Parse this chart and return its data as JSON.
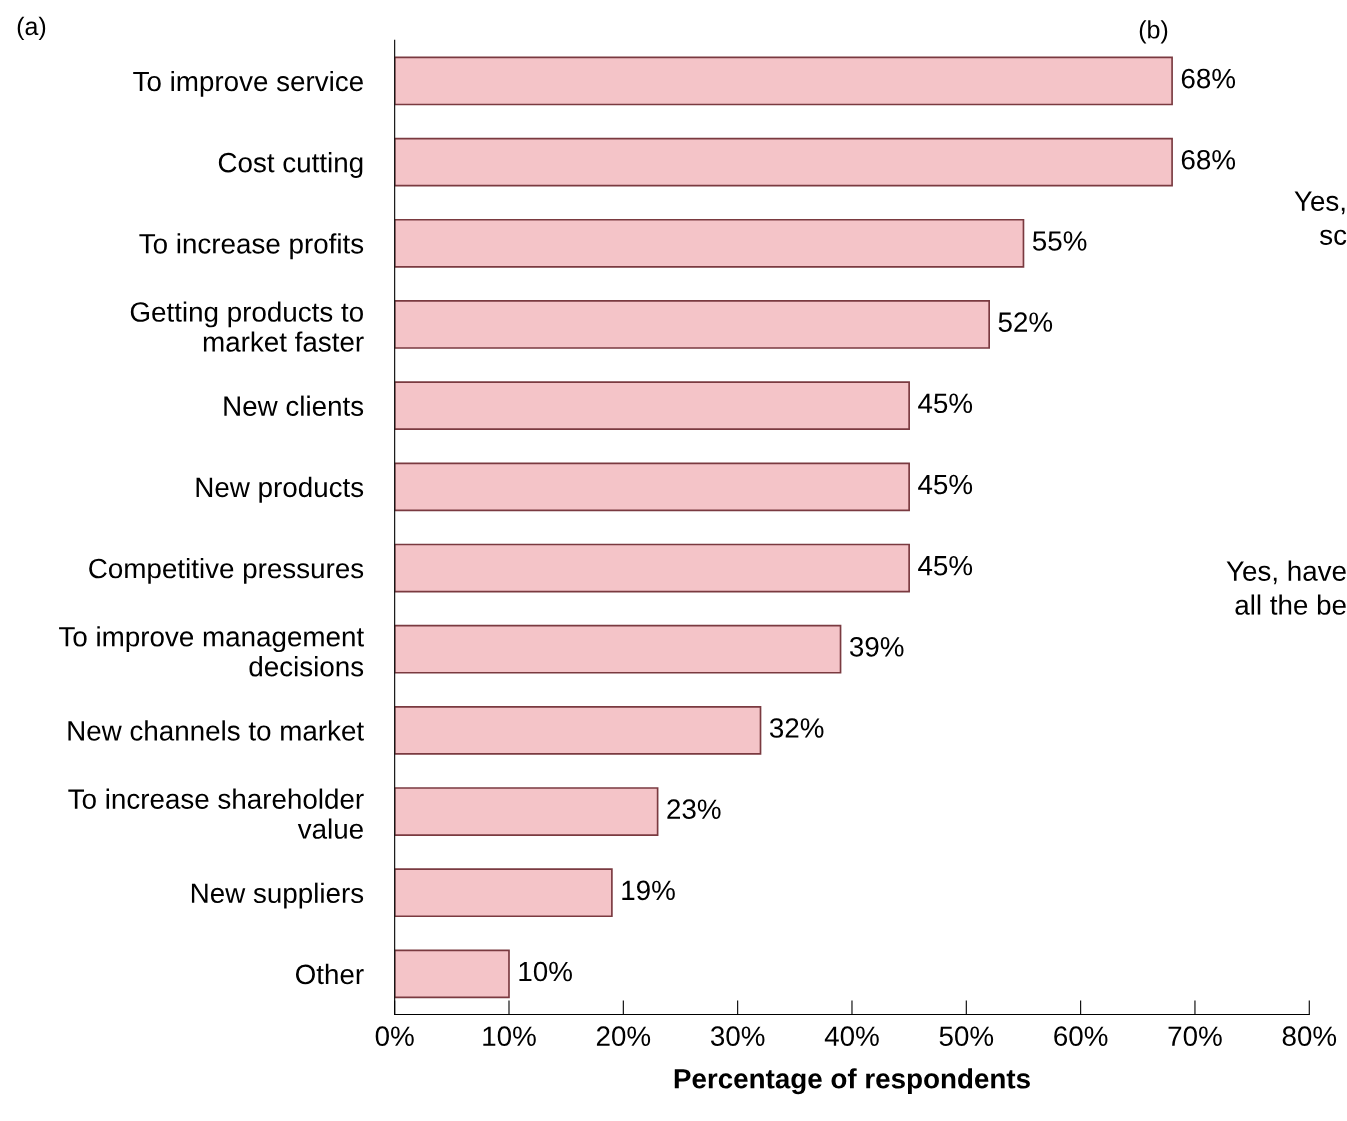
{
  "chart_data": {
    "type": "bar",
    "orientation": "horizontal",
    "xlabel": "Percentage of respondents",
    "categories": [
      "To improve service",
      "Cost cutting",
      "To increase profits",
      "Getting products to\nmarket faster",
      "New clients",
      "New products",
      "Competitive pressures",
      "To improve management\ndecisions",
      "New channels to market",
      "To increase shareholder\nvalue",
      "New suppliers",
      "Other"
    ],
    "values": [
      68,
      68,
      55,
      52,
      45,
      45,
      45,
      39,
      32,
      23,
      19,
      10
    ],
    "value_labels": [
      "68%",
      "68%",
      "55%",
      "52%",
      "45%",
      "45%",
      "45%",
      "39%",
      "32%",
      "23%",
      "19%",
      "10%"
    ],
    "color": "#f4c4c8",
    "xlim": [
      0,
      80
    ],
    "xticks": [
      {
        "value": 0,
        "label": "0%"
      },
      {
        "value": 10,
        "label": "10%"
      },
      {
        "value": 20,
        "label": "20%"
      },
      {
        "value": 30,
        "label": "30%"
      },
      {
        "value": 40,
        "label": "40%"
      },
      {
        "value": 50,
        "label": "50%"
      },
      {
        "value": 60,
        "label": "60%"
      },
      {
        "value": 70,
        "label": "70%"
      },
      {
        "value": 80,
        "label": "80%"
      }
    ],
    "grid": false,
    "annotations": [
      "(a)",
      "(b)",
      "Yes,\nsc",
      "Yes, have\nall the be"
    ]
  }
}
